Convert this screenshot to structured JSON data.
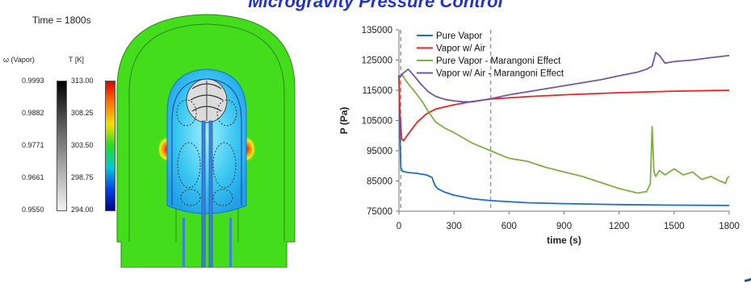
{
  "title": "Microgravity Pressure Control",
  "simulation": {
    "time_label": "Time = 1800s",
    "omega_header": "ω (Vapor)",
    "temp_header": "T [K]",
    "omega_ticks": [
      "0.9993",
      "0.9882",
      "0.9771",
      "0.9661",
      "0.9550"
    ],
    "temp_ticks": [
      "313.00",
      "308.25",
      "303.50",
      "298.75",
      "294.00"
    ],
    "omega_range": [
      0.955,
      0.9993
    ],
    "temp_range": [
      294.0,
      313.0
    ],
    "colors": {
      "tank_fill": "#44dd1c",
      "liquid": "#3cc8f2",
      "hotspot": "#ee2200",
      "ullage": "#dcdcdc"
    }
  },
  "chart_data": {
    "type": "line",
    "xlabel": "time (s)",
    "ylabel": "P (Pa)",
    "xlim": [
      0,
      1800
    ],
    "ylim": [
      75000,
      135000
    ],
    "x_ticks": [
      0,
      300,
      600,
      900,
      1200,
      1500,
      1800
    ],
    "y_ticks": [
      75000,
      85000,
      95000,
      105000,
      115000,
      125000,
      135000
    ],
    "grid": false,
    "legend": "top-right",
    "reference_lines_x": [
      10,
      500
    ],
    "series": [
      {
        "name": "Pure Vapor",
        "color": "#1b6fc8",
        "x": [
          0,
          5,
          10,
          20,
          50,
          100,
          150,
          180,
          190,
          200,
          215,
          250,
          300,
          400,
          500,
          700,
          900,
          1200,
          1500,
          1800
        ],
        "y": [
          120000,
          103000,
          89500,
          88200,
          87800,
          87500,
          87000,
          86200,
          84500,
          83200,
          82300,
          81300,
          80300,
          79100,
          78500,
          77800,
          77500,
          77200,
          77000,
          76900
        ]
      },
      {
        "name": "Vapor w/ Air",
        "color": "#ee2222",
        "x": [
          0,
          5,
          15,
          25,
          50,
          100,
          150,
          200,
          300,
          400,
          500,
          700,
          900,
          1200,
          1500,
          1800
        ],
        "y": [
          120000,
          108000,
          99000,
          98300,
          100500,
          104500,
          107200,
          108800,
          110200,
          111300,
          112100,
          112900,
          113500,
          114200,
          114700,
          115000
        ]
      },
      {
        "name": "Pure Vapor - Marangoni Effect",
        "color": "#7faf42",
        "x": [
          0,
          20,
          40,
          60,
          80,
          100,
          130,
          160,
          200,
          250,
          300,
          400,
          500,
          600,
          700,
          800,
          900,
          1000,
          1100,
          1200,
          1300,
          1350,
          1370,
          1380,
          1390,
          1400,
          1410,
          1420,
          1450,
          1500,
          1550,
          1600,
          1650,
          1700,
          1750,
          1780,
          1790,
          1800
        ],
        "y": [
          119000,
          120000,
          118000,
          116500,
          115000,
          113500,
          111000,
          108000,
          104500,
          102500,
          101000,
          97500,
          95000,
          92500,
          91500,
          89500,
          88000,
          86500,
          84500,
          82500,
          81000,
          81500,
          84000,
          103000,
          88000,
          86500,
          87500,
          88500,
          87000,
          89000,
          87000,
          88000,
          85500,
          86500,
          85000,
          84200,
          86000,
          86500
        ]
      },
      {
        "name": "Vapor w/ Air - Marangoni Effect",
        "color": "#7057a8",
        "x": [
          0,
          20,
          50,
          80,
          120,
          160,
          200,
          250,
          300,
          350,
          400,
          500,
          600,
          700,
          800,
          900,
          1000,
          1100,
          1200,
          1300,
          1350,
          1380,
          1400,
          1420,
          1450,
          1500,
          1600,
          1700,
          1800
        ],
        "y": [
          119000,
          120500,
          122000,
          120000,
          117000,
          114500,
          113000,
          112000,
          111500,
          111200,
          111200,
          112200,
          113500,
          114500,
          115500,
          116500,
          117500,
          118500,
          119800,
          121000,
          122000,
          123000,
          127500,
          126500,
          124000,
          124500,
          125000,
          125800,
          126500
        ]
      }
    ]
  }
}
